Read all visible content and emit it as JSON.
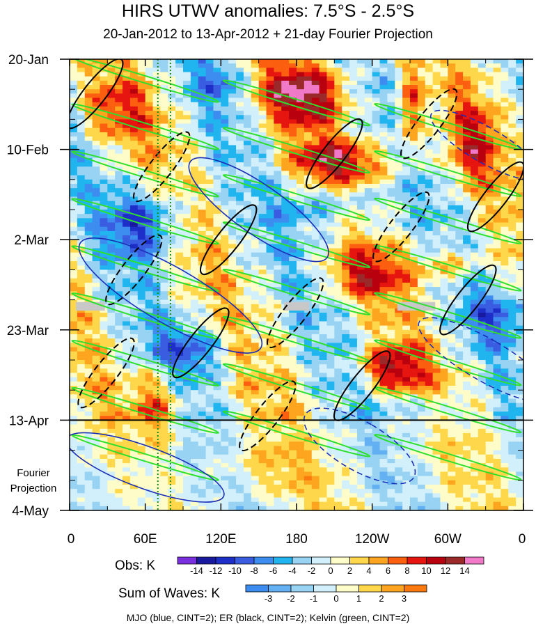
{
  "chart_data": {
    "type": "heatmap",
    "title": "HIRS UTWV anomalies: 7.5°S - 2.5°S",
    "subtitle": "20-Jan-2012 to 13-Apr-2012 + 21-day Fourier Projection",
    "x_ticks": [
      "0",
      "60E",
      "120E",
      "180",
      "120W",
      "60W",
      "0"
    ],
    "y_ticks": [
      "20-Jan",
      "10-Feb",
      "2-Mar",
      "23-Mar",
      "13-Apr",
      "4-May"
    ],
    "projection_label": [
      "Fourier",
      "Projection"
    ],
    "xlim": [
      0,
      360
    ],
    "ylim_days": [
      0,
      105
    ],
    "obs_end_day": 84,
    "obs_colorbar": {
      "label": "Obs: K",
      "levels": [
        "-14",
        "-12",
        "-10",
        "-8",
        "-6",
        "-4",
        "-2",
        "0",
        "2",
        "4",
        "6",
        "8",
        "10",
        "12",
        "14"
      ],
      "colors": [
        "#7a2fe0",
        "#1a1aa0",
        "#1e2ec8",
        "#3a5ce0",
        "#3d8df0",
        "#21b5ef",
        "#98d3f3",
        "#d2f0fb",
        "#fefcc8",
        "#fed84a",
        "#fea51f",
        "#fb5f0f",
        "#e6150f",
        "#b8000f",
        "#9a2a2a",
        "#f079c8"
      ]
    },
    "wave_colorbar": {
      "label": "Sum of Waves: K",
      "levels": [
        "-3",
        "-2",
        "-1",
        "0",
        "1",
        "2",
        "3"
      ],
      "colors": [
        "#3d8df0",
        "#63b0f2",
        "#98d3f3",
        "#d2f0fb",
        "#fefcc8",
        "#fed84a",
        "#fea51f",
        "#fb7a0f"
      ]
    },
    "contour_series": [
      {
        "name": "MJO",
        "color": "#1a2eb8",
        "cint": 2
      },
      {
        "name": "ER",
        "color": "#000000",
        "cint": 2
      },
      {
        "name": "Kelvin",
        "color": "#2ee02e",
        "cint": 2
      }
    ],
    "reference_lines": [
      {
        "type": "vertical",
        "x": 70,
        "color": "#1a8a1a",
        "style": "dotted"
      },
      {
        "type": "vertical",
        "x": 80,
        "color": "#1a8a1a",
        "style": "dotted"
      },
      {
        "type": "horizontal",
        "day": 84,
        "color": "#000000",
        "style": "solid"
      }
    ],
    "footer": "MJO (blue, CINT=2); ER (black, CINT=2); Kelvin (green, CINT=2)"
  }
}
